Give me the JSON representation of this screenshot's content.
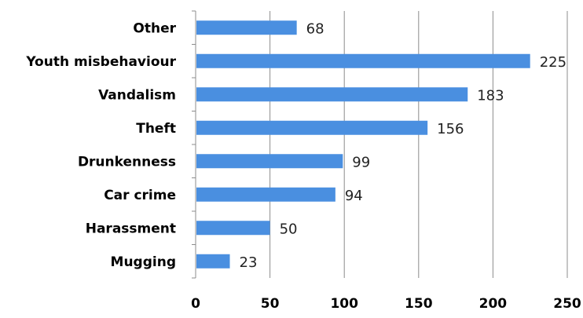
{
  "chart_data": {
    "type": "bar",
    "orientation": "horizontal",
    "title": "",
    "xlabel": "",
    "ylabel": "",
    "categories": [
      "Other",
      "Youth misbehaviour",
      "Vandalism",
      "Theft",
      "Drunkenness",
      "Car crime",
      "Harassment",
      "Mugging"
    ],
    "values": [
      68,
      225,
      183,
      156,
      99,
      94,
      50,
      23
    ],
    "xlim": [
      0,
      250
    ],
    "xticks": [
      0,
      50,
      100,
      150,
      200,
      250
    ],
    "grid": "vertical",
    "legend": "none",
    "data_labels": true,
    "bar_color": "#4a8fe0"
  }
}
